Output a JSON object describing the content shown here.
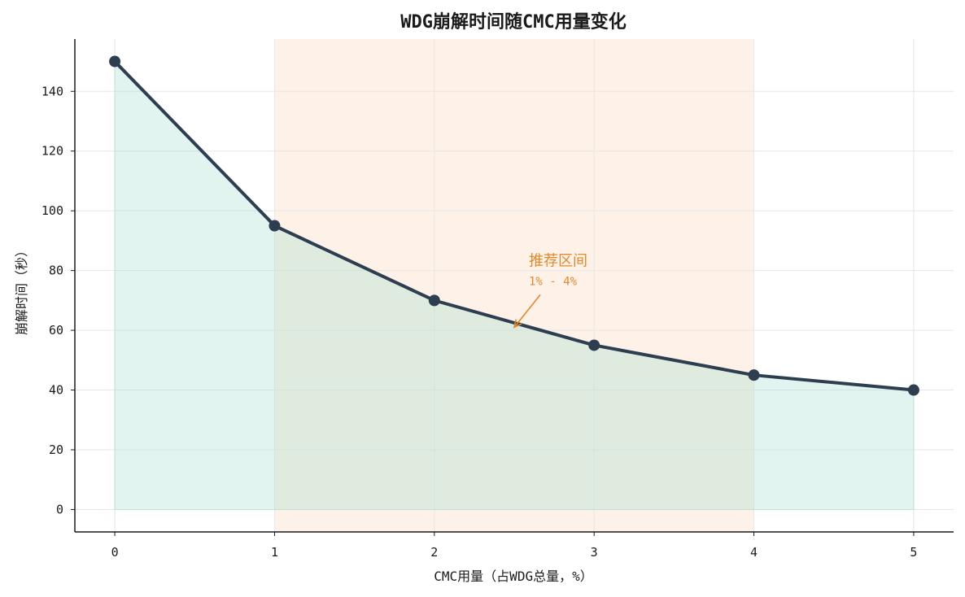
{
  "chart_data": {
    "type": "line",
    "title": "WDG崩解时间随CMC用量变化",
    "xlabel": "CMC用量（占WDG总量，%）",
    "ylabel": "崩解时间（秒）",
    "x": [
      0,
      1,
      2,
      3,
      4,
      5
    ],
    "values": [
      150,
      95,
      70,
      55,
      45,
      40
    ],
    "xlim": [
      -0.25,
      5.25
    ],
    "ylim": [
      -7.5,
      157.5
    ],
    "xticks": [
      "0",
      "1",
      "2",
      "3",
      "4",
      "5"
    ],
    "yticks": [
      "0",
      "20",
      "40",
      "60",
      "80",
      "100",
      "120",
      "140"
    ],
    "grid": true,
    "area_fill": true,
    "highlight_range": [
      1,
      4
    ],
    "annotation": {
      "title": "推荐区间",
      "subtitle": "1% - 4%",
      "target": [
        2.5,
        61
      ]
    },
    "colors": {
      "line": "#2c3e50",
      "area": "#a8e0d0",
      "highlight": "#fbe5d6",
      "annotation": "#e08a2e",
      "grid": "#e6e6e6"
    }
  }
}
